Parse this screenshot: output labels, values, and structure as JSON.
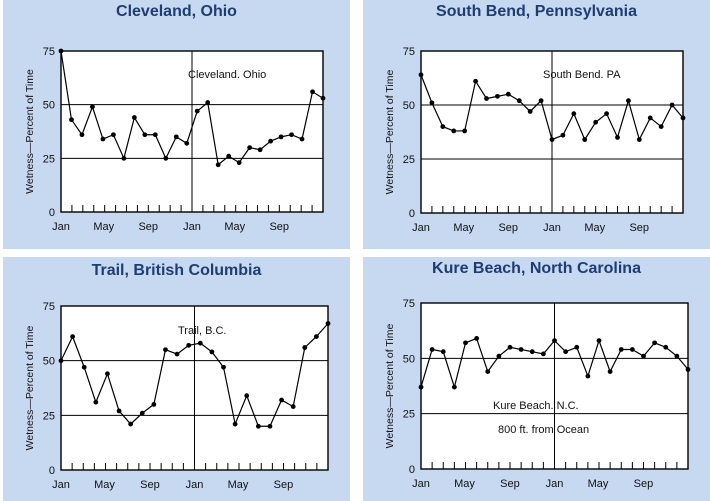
{
  "chart_data": [
    {
      "type": "line",
      "title": "Cleveland, Ohio",
      "annotation": [
        "Cleveland. Ohio"
      ],
      "ylabel": "Wetness—Percent of Time",
      "ylim": [
        0,
        75
      ],
      "yticks": [
        "0",
        "25",
        "50",
        "75"
      ],
      "xtick_labels": [
        "Jan",
        "May",
        "Sep",
        "Jan",
        "May",
        "Sep"
      ],
      "reference_lines": [
        25,
        50
      ],
      "series": [
        {
          "values": [
            75,
            43,
            36,
            49,
            34,
            36,
            25,
            44,
            36,
            36,
            25,
            35,
            32,
            47,
            51,
            22,
            26,
            23,
            30,
            29,
            33,
            35,
            36,
            34,
            56,
            53
          ]
        }
      ]
    },
    {
      "type": "line",
      "title": "South Bend, Pennsylvania",
      "annotation": [
        "South Bend. PA"
      ],
      "ylabel": "Wetness—Percent of Time",
      "ylim": [
        0,
        75
      ],
      "yticks": [
        "0",
        "25",
        "50",
        "75"
      ],
      "xtick_labels": [
        "Jan",
        "May",
        "Sep",
        "Jan",
        "May",
        "Sep"
      ],
      "reference_lines": [
        25,
        50
      ],
      "series": [
        {
          "values": [
            64,
            51,
            40,
            38,
            38,
            61,
            53,
            54,
            55,
            52,
            47,
            52,
            34,
            36,
            46,
            34,
            42,
            46,
            35,
            52,
            34,
            44,
            40,
            50,
            44
          ]
        }
      ]
    },
    {
      "type": "line",
      "title": "Trail, British Columbia",
      "annotation": [
        "Trail, B.C."
      ],
      "ylabel": "Wetness—Percent of Time",
      "ylim": [
        0,
        75
      ],
      "yticks": [
        "0",
        "25",
        "50",
        "75"
      ],
      "xtick_labels": [
        "Jan",
        "May",
        "Sep",
        "Jan",
        "May",
        "Sep"
      ],
      "reference_lines": [
        25,
        50
      ],
      "series": [
        {
          "values": [
            50,
            61,
            47,
            31,
            44,
            27,
            21,
            26,
            30,
            55,
            53,
            57,
            58,
            54,
            47,
            21,
            34,
            20,
            20,
            32,
            29,
            56,
            61,
            67
          ]
        }
      ]
    },
    {
      "type": "line",
      "title": "Kure Beach, North Carolina",
      "annotation": [
        "Kure Beach. N.C.",
        "800 ft. from Ocean"
      ],
      "ylabel": "Wetness—Percent of Time",
      "ylim": [
        0,
        75
      ],
      "yticks": [
        "0",
        "25",
        "50",
        "75"
      ],
      "xtick_labels": [
        "Jan",
        "May",
        "Sep",
        "Jan",
        "May",
        "Sep"
      ],
      "reference_lines": [
        25,
        50
      ],
      "series": [
        {
          "values": [
            37,
            54,
            53,
            37,
            57,
            59,
            44,
            51,
            55,
            54,
            53,
            52,
            58,
            53,
            55,
            42,
            58,
            44,
            54,
            54,
            51,
            57,
            55,
            51,
            45
          ]
        }
      ]
    }
  ]
}
